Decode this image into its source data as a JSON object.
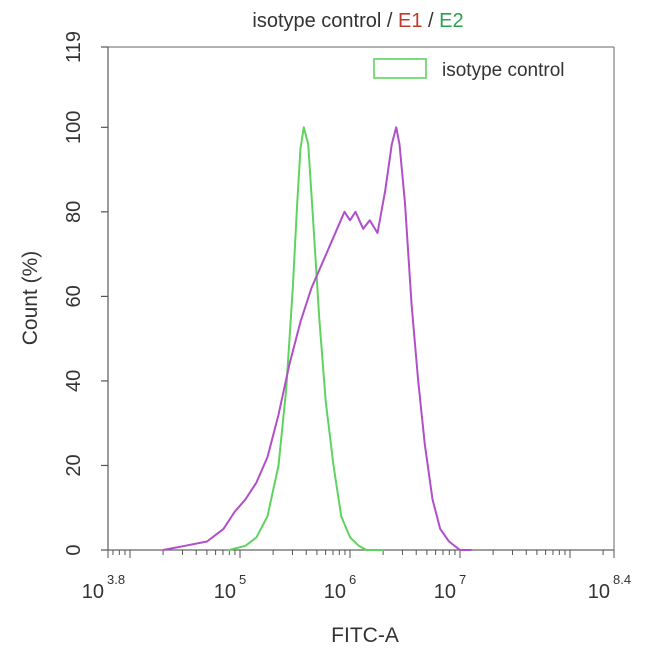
{
  "chart_data": {
    "type": "line",
    "title": {
      "parts": [
        {
          "text": "isotype control",
          "color": "#333333"
        },
        {
          "text": " / ",
          "color": "#333333"
        },
        {
          "text": "E1",
          "color": "#c0392b"
        },
        {
          "text": " / ",
          "color": "#333333"
        },
        {
          "text": "E2",
          "color": "#2e9e4f"
        }
      ]
    },
    "xlabel": "FITC-A",
    "ylabel": "Count (%)",
    "x_scale": "log10",
    "xlim_exponent": [
      3.8,
      8.4
    ],
    "ylim": [
      0,
      119
    ],
    "x_ticks": [
      {
        "base": "10",
        "exp": "3.8",
        "value": 3.8
      },
      {
        "base": "10",
        "exp": "5",
        "value": 5
      },
      {
        "base": "10",
        "exp": "6",
        "value": 6
      },
      {
        "base": "10",
        "exp": "7",
        "value": 7
      },
      {
        "base": "10",
        "exp": "8.4",
        "value": 8.4
      }
    ],
    "y_ticks": [
      "0",
      "20",
      "40",
      "60",
      "80",
      "100",
      "119"
    ],
    "legend": {
      "position": "top-right",
      "entries": [
        "isotype control"
      ]
    },
    "series": [
      {
        "name": "isotype control",
        "color": "#5fd35f",
        "x_log10": [
          4.9,
          5.05,
          5.15,
          5.25,
          5.35,
          5.42,
          5.48,
          5.52,
          5.55,
          5.58,
          5.62,
          5.66,
          5.72,
          5.78,
          5.85,
          5.92,
          6.0,
          6.08,
          6.15,
          6.3
        ],
        "y": [
          0,
          1,
          3,
          8,
          20,
          38,
          62,
          82,
          95,
          100,
          96,
          80,
          55,
          35,
          20,
          8,
          3,
          1,
          0,
          0
        ]
      },
      {
        "name": "E1/E2",
        "color": "#b04fc9",
        "x_log10": [
          4.3,
          4.5,
          4.7,
          4.85,
          4.95,
          5.05,
          5.15,
          5.25,
          5.35,
          5.45,
          5.55,
          5.65,
          5.75,
          5.85,
          5.95,
          6.0,
          6.05,
          6.12,
          6.18,
          6.25,
          6.32,
          6.38,
          6.42,
          6.45,
          6.5,
          6.56,
          6.62,
          6.68,
          6.75,
          6.82,
          6.9,
          7.0,
          7.1
        ],
        "y": [
          0,
          1,
          2,
          5,
          9,
          12,
          16,
          22,
          32,
          44,
          54,
          62,
          68,
          74,
          80,
          78,
          80,
          76,
          78,
          75,
          85,
          96,
          100,
          96,
          82,
          58,
          40,
          25,
          12,
          5,
          2,
          0,
          0
        ]
      }
    ]
  }
}
